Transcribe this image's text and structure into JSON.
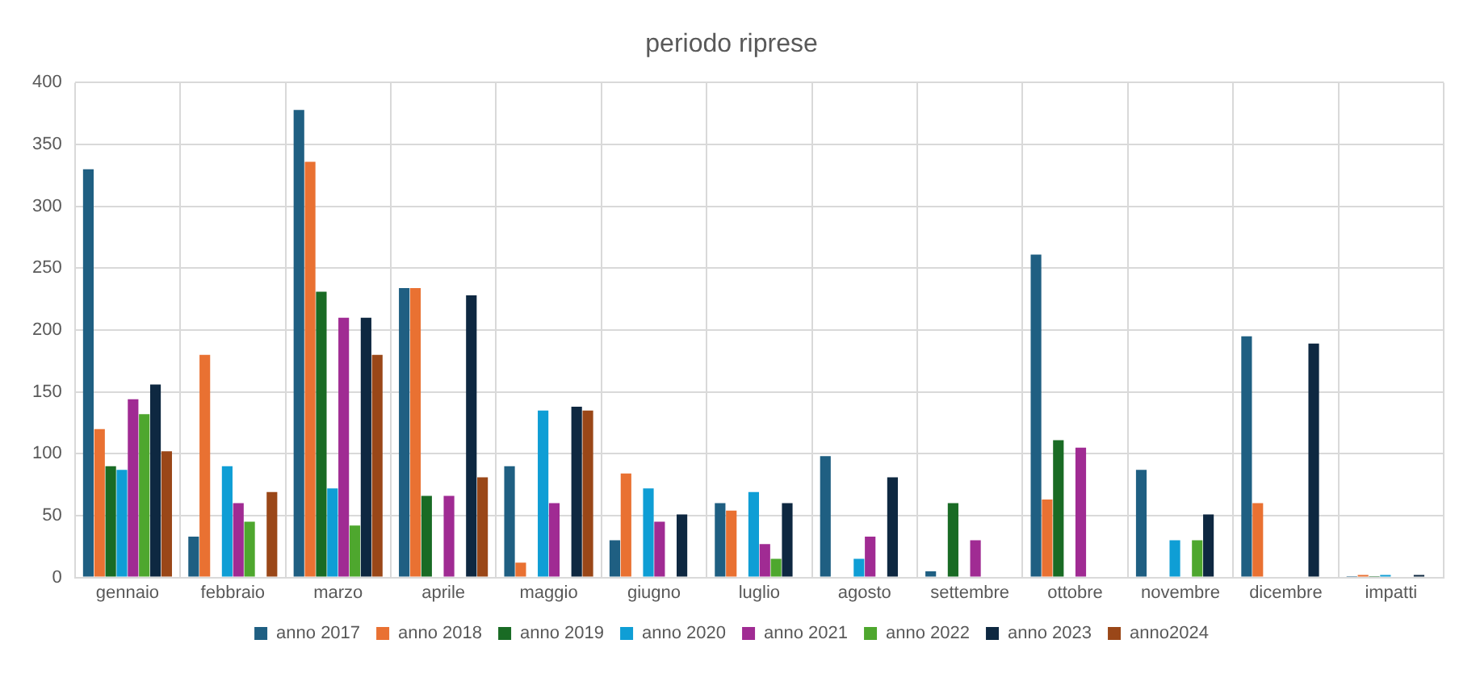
{
  "chart_data": {
    "type": "bar",
    "title": "periodo riprese",
    "categories": [
      "gennaio",
      "febbraio",
      "marzo",
      "aprile",
      "maggio",
      "giugno",
      "luglio",
      "agosto",
      "settembre",
      "ottobre",
      "novembre",
      "dicembre",
      "impatti"
    ],
    "series": [
      {
        "name": "anno 2017",
        "color": "#1f5f82",
        "values": [
          330,
          33,
          378,
          234,
          90,
          30,
          60,
          98,
          5,
          261,
          87,
          195,
          1
        ]
      },
      {
        "name": "anno 2018",
        "color": "#e97132",
        "values": [
          120,
          180,
          336,
          234,
          12,
          84,
          54,
          null,
          null,
          63,
          null,
          60,
          2
        ]
      },
      {
        "name": "anno 2019",
        "color": "#196b24",
        "values": [
          90,
          null,
          231,
          66,
          null,
          null,
          null,
          null,
          60,
          111,
          null,
          null,
          1
        ]
      },
      {
        "name": "anno 2020",
        "color": "#0f9ed5",
        "values": [
          87,
          90,
          72,
          null,
          135,
          72,
          69,
          15,
          null,
          null,
          30,
          null,
          2
        ]
      },
      {
        "name": "anno 2021",
        "color": "#a02b93",
        "values": [
          144,
          60,
          210,
          66,
          60,
          45,
          27,
          33,
          30,
          105,
          null,
          null,
          null
        ]
      },
      {
        "name": "anno 2022",
        "color": "#4ea72e",
        "values": [
          132,
          45,
          42,
          null,
          null,
          null,
          15,
          null,
          null,
          null,
          30,
          null,
          null
        ]
      },
      {
        "name": "anno 2023",
        "color": "#0e2841",
        "values": [
          156,
          null,
          210,
          228,
          138,
          51,
          60,
          81,
          null,
          null,
          51,
          189,
          2
        ]
      },
      {
        "name": "anno2024",
        "color": "#9a4718",
        "values": [
          102,
          69,
          180,
          81,
          135,
          null,
          null,
          null,
          null,
          null,
          null,
          null,
          null
        ]
      }
    ],
    "ylim": [
      0,
      400
    ],
    "yticks": [
      0,
      50,
      100,
      150,
      200,
      250,
      300,
      350,
      400
    ],
    "grid": true,
    "legend": "bottom"
  }
}
